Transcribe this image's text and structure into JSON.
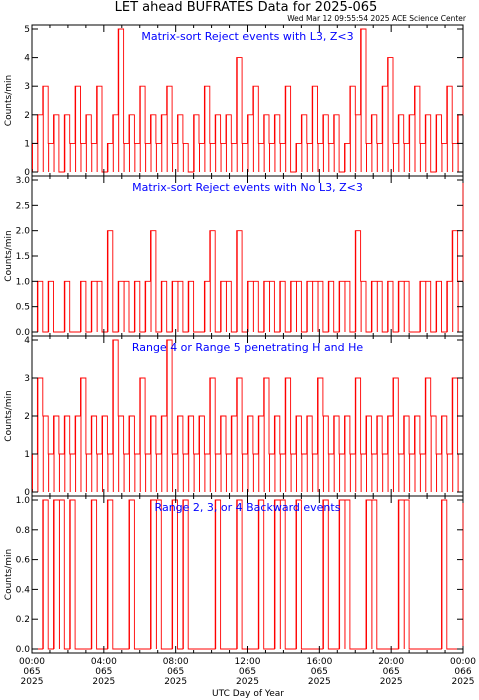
{
  "title": "LET ahead BUFRATES Data for 2025-065",
  "timestamp": "Wed Mar 12 09:55:54 2025 ACE Science Center",
  "xlabel": "UTC Day of Year",
  "ylabel": "Counts/min",
  "colors": {
    "series": "#ff0000",
    "panel_title": "#0000ff",
    "axes": "#000000"
  },
  "x_ticks": [
    {
      "time": "00:00",
      "doy": "065",
      "year": "2025"
    },
    {
      "time": "04:00",
      "doy": "065",
      "year": "2025"
    },
    {
      "time": "08:00",
      "doy": "065",
      "year": "2025"
    },
    {
      "time": "12:00",
      "doy": "065",
      "year": "2025"
    },
    {
      "time": "16:00",
      "doy": "065",
      "year": "2025"
    },
    {
      "time": "20:00",
      "doy": "065",
      "year": "2025"
    },
    {
      "time": "00:00",
      "doy": "066",
      "year": "2025"
    }
  ],
  "chart_data": [
    {
      "type": "line",
      "title": "Matrix-sort Reject events with L3, Z<3",
      "ylabel": "Counts/min",
      "xlim_hours": [
        0,
        24
      ],
      "ylim": [
        0,
        5
      ],
      "yticks": [
        "0",
        "1",
        "2",
        "3",
        "4",
        "5"
      ],
      "x_hours": [
        0.0,
        0.3,
        0.6,
        0.9,
        1.2,
        1.5,
        1.8,
        2.1,
        2.4,
        2.7,
        3.0,
        3.3,
        3.6,
        3.9,
        4.2,
        4.5,
        4.8,
        5.1,
        5.4,
        5.7,
        6.0,
        6.3,
        6.6,
        6.9,
        7.2,
        7.5,
        7.8,
        8.1,
        8.4,
        8.7,
        9.0,
        9.3,
        9.6,
        9.9,
        10.2,
        10.5,
        10.8,
        11.1,
        11.4,
        11.7,
        12.0,
        12.3,
        12.6,
        12.9,
        13.2,
        13.5,
        13.8,
        14.1,
        14.4,
        14.7,
        15.0,
        15.3,
        15.6,
        15.9,
        16.2,
        16.5,
        16.8,
        17.1,
        17.4,
        17.7,
        18.0,
        18.3,
        18.6,
        18.9,
        19.2,
        19.5,
        19.8,
        20.1,
        20.4,
        20.7,
        21.0,
        21.3,
        21.6,
        21.9,
        22.2,
        22.5,
        22.8,
        23.1,
        23.4,
        23.7,
        24.0
      ],
      "values": [
        1,
        2,
        3,
        1,
        2,
        0,
        2,
        1,
        3,
        1,
        2,
        1,
        3,
        0,
        1,
        2,
        5,
        1,
        2,
        1,
        3,
        1,
        2,
        1,
        2,
        3,
        1,
        2,
        1,
        0,
        2,
        1,
        3,
        1,
        2,
        1,
        2,
        1,
        4,
        1,
        2,
        3,
        1,
        2,
        1,
        2,
        1,
        3,
        0,
        1,
        2,
        1,
        3,
        1,
        2,
        1,
        2,
        0,
        1,
        3,
        2,
        5,
        1,
        2,
        1,
        3,
        4,
        1,
        2,
        1,
        2,
        3,
        1,
        2,
        0,
        2,
        1,
        3,
        1,
        2,
        4
      ]
    },
    {
      "type": "line",
      "title": "Matrix-sort Reject events with No L3, Z<3",
      "ylabel": "Counts/min",
      "xlim_hours": [
        0,
        24
      ],
      "ylim": [
        0,
        3
      ],
      "yticks": [
        "0.0",
        "0.5",
        "1.0",
        "1.5",
        "2.0",
        "2.5",
        "3.0"
      ],
      "x_hours": [
        0.0,
        0.3,
        0.6,
        0.9,
        1.2,
        1.5,
        1.8,
        2.1,
        2.4,
        2.7,
        3.0,
        3.3,
        3.6,
        3.9,
        4.2,
        4.5,
        4.8,
        5.1,
        5.4,
        5.7,
        6.0,
        6.3,
        6.6,
        6.9,
        7.2,
        7.5,
        7.8,
        8.1,
        8.4,
        8.7,
        9.0,
        9.3,
        9.6,
        9.9,
        10.2,
        10.5,
        10.8,
        11.1,
        11.4,
        11.7,
        12.0,
        12.3,
        12.6,
        12.9,
        13.2,
        13.5,
        13.8,
        14.1,
        14.4,
        14.7,
        15.0,
        15.3,
        15.6,
        15.9,
        16.2,
        16.5,
        16.8,
        17.1,
        17.4,
        17.7,
        18.0,
        18.3,
        18.6,
        18.9,
        19.2,
        19.5,
        19.8,
        20.1,
        20.4,
        20.7,
        21.0,
        21.3,
        21.6,
        21.9,
        22.2,
        22.5,
        22.8,
        23.1,
        23.4,
        23.7,
        24.0
      ],
      "values": [
        0,
        1,
        0,
        1,
        0,
        0,
        1,
        0,
        0,
        1,
        0,
        1,
        1,
        0,
        2,
        0,
        1,
        1,
        0,
        1,
        0,
        1,
        2,
        0,
        1,
        0,
        1,
        1,
        0,
        1,
        0,
        0,
        1,
        2,
        0,
        1,
        1,
        0,
        2,
        0,
        1,
        1,
        0,
        1,
        1,
        0,
        1,
        0,
        1,
        1,
        0,
        1,
        1,
        1,
        0,
        1,
        0,
        1,
        1,
        0,
        2,
        1,
        0,
        1,
        1,
        0,
        1,
        0,
        1,
        1,
        0,
        0,
        1,
        1,
        0,
        1,
        0,
        1,
        2,
        1,
        3
      ]
    },
    {
      "type": "line",
      "title": "Range 4 or Range 5 penetrating H and He",
      "ylabel": "Counts/min",
      "xlim_hours": [
        0,
        24
      ],
      "ylim": [
        0,
        4
      ],
      "yticks": [
        "0",
        "1",
        "2",
        "3",
        "4"
      ],
      "x_hours": [
        0.0,
        0.3,
        0.6,
        0.9,
        1.2,
        1.5,
        1.8,
        2.1,
        2.4,
        2.7,
        3.0,
        3.3,
        3.6,
        3.9,
        4.2,
        4.5,
        4.8,
        5.1,
        5.4,
        5.7,
        6.0,
        6.3,
        6.6,
        6.9,
        7.2,
        7.5,
        7.8,
        8.1,
        8.4,
        8.7,
        9.0,
        9.3,
        9.6,
        9.9,
        10.2,
        10.5,
        10.8,
        11.1,
        11.4,
        11.7,
        12.0,
        12.3,
        12.6,
        12.9,
        13.2,
        13.5,
        13.8,
        14.1,
        14.4,
        14.7,
        15.0,
        15.3,
        15.6,
        15.9,
        16.2,
        16.5,
        16.8,
        17.1,
        17.4,
        17.7,
        18.0,
        18.3,
        18.6,
        18.9,
        19.2,
        19.5,
        19.8,
        20.1,
        20.4,
        20.7,
        21.0,
        21.3,
        21.6,
        21.9,
        22.2,
        22.5,
        22.8,
        23.1,
        23.4,
        23.7,
        24.0
      ],
      "values": [
        1,
        3,
        2,
        1,
        2,
        1,
        2,
        1,
        2,
        3,
        1,
        2,
        1,
        2,
        1,
        4,
        2,
        1,
        2,
        1,
        3,
        1,
        2,
        1,
        2,
        4,
        1,
        2,
        1,
        2,
        1,
        2,
        1,
        3,
        1,
        2,
        1,
        2,
        3,
        1,
        2,
        1,
        2,
        3,
        1,
        2,
        1,
        3,
        1,
        2,
        1,
        2,
        1,
        3,
        2,
        1,
        2,
        1,
        2,
        1,
        3,
        1,
        2,
        1,
        2,
        1,
        2,
        3,
        1,
        2,
        1,
        2,
        1,
        3,
        2,
        1,
        2,
        1,
        3,
        1,
        1
      ]
    },
    {
      "type": "line",
      "title": "Range 2, 3, or 4 Backward events",
      "ylabel": "Counts/min",
      "xlim_hours": [
        0,
        24
      ],
      "ylim": [
        0,
        1
      ],
      "yticks": [
        "0.0",
        "0.2",
        "0.4",
        "0.6",
        "0.8",
        "1.0"
      ],
      "x_hours": [
        0.0,
        0.3,
        0.6,
        0.9,
        1.2,
        1.5,
        1.8,
        2.1,
        2.4,
        2.7,
        3.0,
        3.3,
        3.6,
        3.9,
        4.2,
        4.5,
        4.8,
        5.1,
        5.4,
        5.7,
        6.0,
        6.3,
        6.6,
        6.9,
        7.2,
        7.5,
        7.8,
        8.1,
        8.4,
        8.7,
        9.0,
        9.3,
        9.6,
        9.9,
        10.2,
        10.5,
        10.8,
        11.1,
        11.4,
        11.7,
        12.0,
        12.3,
        12.6,
        12.9,
        13.2,
        13.5,
        13.8,
        14.1,
        14.4,
        14.7,
        15.0,
        15.3,
        15.6,
        15.9,
        16.2,
        16.5,
        16.8,
        17.1,
        17.4,
        17.7,
        18.0,
        18.3,
        18.6,
        18.9,
        19.2,
        19.5,
        19.8,
        20.1,
        20.4,
        20.7,
        21.0,
        21.3,
        21.6,
        21.9,
        22.2,
        22.5,
        22.8,
        23.1,
        23.4,
        23.7,
        24.0
      ],
      "values": [
        0,
        0,
        1,
        0,
        1,
        1,
        0,
        1,
        0,
        0,
        0,
        1,
        0,
        0,
        1,
        0,
        0,
        0,
        1,
        0,
        0,
        0,
        1,
        1,
        0,
        0,
        1,
        0,
        1,
        0,
        0,
        0,
        0,
        0,
        1,
        0,
        0,
        0,
        1,
        0,
        0,
        0,
        1,
        0,
        0,
        1,
        1,
        0,
        0,
        1,
        0,
        0,
        0,
        0,
        1,
        0,
        0,
        1,
        1,
        0,
        0,
        0,
        1,
        1,
        0,
        0,
        0,
        0,
        1,
        1,
        0,
        0,
        0,
        0,
        0,
        0,
        1,
        0,
        0,
        0,
        1
      ]
    }
  ]
}
